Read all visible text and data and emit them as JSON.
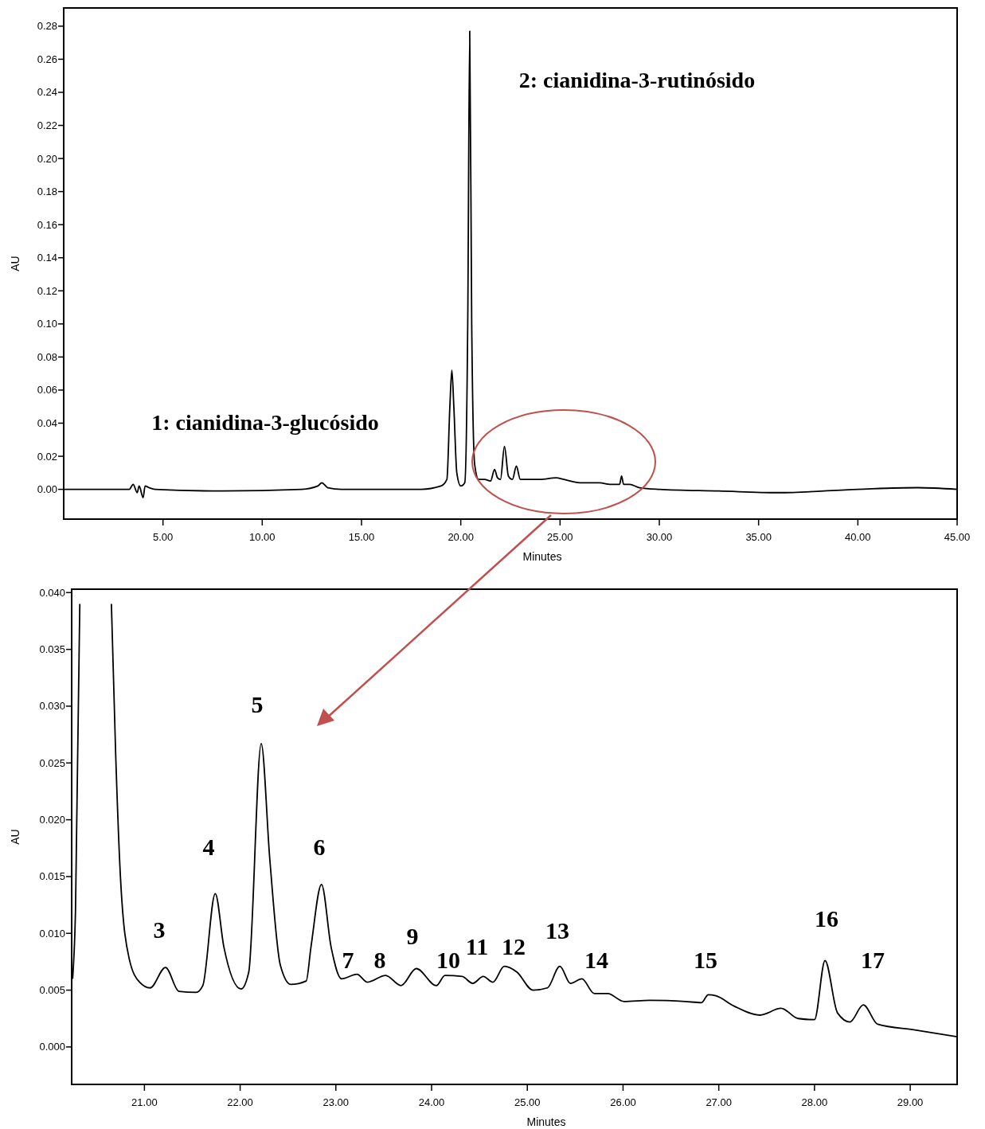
{
  "chart_data": [
    {
      "type": "line",
      "xlabel": "Minutes",
      "ylabel": "AU",
      "xlim": [
        0,
        45
      ],
      "ylim": [
        -0.018,
        0.291
      ],
      "xticks": [
        {
          "value": 5,
          "label": "5.00"
        },
        {
          "value": 10,
          "label": "10.00"
        },
        {
          "value": 15,
          "label": "15.00"
        },
        {
          "value": 20,
          "label": "20.00"
        },
        {
          "value": 25,
          "label": "25.00"
        },
        {
          "value": 30,
          "label": "30.00"
        },
        {
          "value": 35,
          "label": "35.00"
        },
        {
          "value": 40,
          "label": "40.00"
        },
        {
          "value": 45,
          "label": "45.00"
        }
      ],
      "yticks": [
        {
          "value": 0,
          "label": "0.00"
        },
        0.02,
        0.04,
        0.06,
        0.08,
        {
          "value": 0.1,
          "label": "0.10"
        },
        0.12,
        0.14,
        0.16,
        0.18,
        {
          "value": 0.2,
          "label": "0.20"
        },
        0.22,
        0.24,
        0.26,
        0.28
      ],
      "grid": false,
      "marker": "none",
      "line_style": "solid",
      "series": [
        {
          "color": "#000000",
          "x": [
            0,
            3.3,
            3.5,
            3.7,
            3.8,
            4.0,
            4.1,
            4.3,
            4.6,
            8,
            12,
            12.8,
            13.0,
            13.3,
            14,
            18,
            19.0,
            19.3,
            19.45,
            19.55,
            19.65,
            19.8,
            20.0,
            20.2,
            20.35,
            20.45,
            20.55,
            20.7,
            20.9,
            21.2,
            21.5,
            21.7,
            21.85,
            22.0,
            22.2,
            22.4,
            22.6,
            22.8,
            23.0,
            24,
            24.8,
            25.2,
            26,
            27,
            27.5,
            28.0,
            28.1,
            28.2,
            28.5,
            29,
            30,
            33,
            36,
            40,
            43,
            45
          ],
          "values": [
            0.0,
            0.0,
            0.003,
            -0.002,
            0.002,
            -0.005,
            0.002,
            0.001,
            0.0,
            -0.001,
            0.0,
            0.002,
            0.004,
            0.001,
            0.0,
            0.0,
            0.002,
            0.006,
            0.05,
            0.072,
            0.05,
            0.01,
            0.002,
            0.004,
            0.1,
            0.277,
            0.1,
            0.015,
            0.006,
            0.006,
            0.005,
            0.012,
            0.007,
            0.006,
            0.026,
            0.008,
            0.006,
            0.014,
            0.006,
            0.006,
            0.007,
            0.006,
            0.004,
            0.004,
            0.003,
            0.003,
            0.008,
            0.003,
            0.003,
            0.001,
            0.0,
            -0.001,
            -0.002,
            0.0,
            0.001,
            0.0
          ]
        }
      ],
      "annotations": [
        "1: cianidina-3-glucósido",
        "2: cianidina-3-rutinósido"
      ]
    },
    {
      "type": "line",
      "xlabel": "Minutes",
      "ylabel": "AU",
      "xlim": [
        20.24,
        29.49
      ],
      "ylim": [
        -0.0033,
        0.0403
      ],
      "xticks": [
        {
          "value": 21,
          "label": "21.00"
        },
        {
          "value": 22,
          "label": "22.00"
        },
        {
          "value": 23,
          "label": "23.00"
        },
        {
          "value": 24,
          "label": "24.00"
        },
        {
          "value": 25,
          "label": "25.00"
        },
        {
          "value": 26,
          "label": "26.00"
        },
        {
          "value": 27,
          "label": "27.00"
        },
        {
          "value": 28,
          "label": "28.00"
        },
        {
          "value": 29,
          "label": "29.00"
        }
      ],
      "yticks": [
        {
          "value": 0,
          "label": "0.000"
        },
        0.005,
        {
          "value": 0.01,
          "label": "0.010"
        },
        0.015,
        {
          "value": 0.02,
          "label": "0.020"
        },
        0.025,
        {
          "value": 0.03,
          "label": "0.030"
        },
        0.035,
        {
          "value": 0.04,
          "label": "0.040"
        }
      ],
      "grid": false,
      "marker": "none",
      "line_style": "solid",
      "series": [
        {
          "color": "#000000",
          "x": [
            20.25,
            20.28,
            20.325,
            20.5,
            20.655,
            20.7,
            20.75,
            20.84,
            20.95,
            21.06,
            21.22,
            21.36,
            21.54,
            21.61,
            21.74,
            21.83,
            22.01,
            22.09,
            22.22,
            22.31,
            22.42,
            22.53,
            22.69,
            22.74,
            22.85,
            22.95,
            23.06,
            23.22,
            23.33,
            23.52,
            23.68,
            23.84,
            24.05,
            24.14,
            24.32,
            24.43,
            24.54,
            24.64,
            24.76,
            24.89,
            25.06,
            25.21,
            25.34,
            25.45,
            25.57,
            25.7,
            25.84,
            26.01,
            26.28,
            26.65,
            26.82,
            26.89,
            26.97,
            27.16,
            27.43,
            27.65,
            27.83,
            28.0,
            28.11,
            28.24,
            28.37,
            28.51,
            28.66,
            29.05,
            29.49
          ],
          "values": [
            0.006,
            0.012,
            0.039,
            null,
            0.039,
            0.0257,
            0.0149,
            0.0078,
            0.0057,
            0.0052,
            0.007,
            0.0049,
            0.0048,
            0.0054,
            0.0135,
            0.0088,
            0.0051,
            0.0066,
            0.0267,
            0.0165,
            0.0072,
            0.0055,
            0.0058,
            0.0088,
            0.0143,
            0.0088,
            0.006,
            0.0064,
            0.0057,
            0.0063,
            0.0054,
            0.0069,
            0.0054,
            0.0063,
            0.0062,
            0.0056,
            0.0062,
            0.0057,
            0.0071,
            0.0066,
            0.005,
            0.0052,
            0.0071,
            0.0056,
            0.006,
            0.0047,
            0.0047,
            0.004,
            0.0041,
            0.004,
            0.0039,
            0.0046,
            0.0045,
            0.0036,
            0.0028,
            0.0034,
            0.0025,
            0.0024,
            0.0076,
            0.003,
            0.0022,
            0.0037,
            0.002,
            0.0015,
            0.0009
          ]
        }
      ],
      "annotations": [
        "3",
        "4",
        "5",
        "6",
        "7",
        "8",
        "9",
        "10",
        "11",
        "12",
        "13",
        "14",
        "15",
        "16",
        "17"
      ]
    }
  ]
}
